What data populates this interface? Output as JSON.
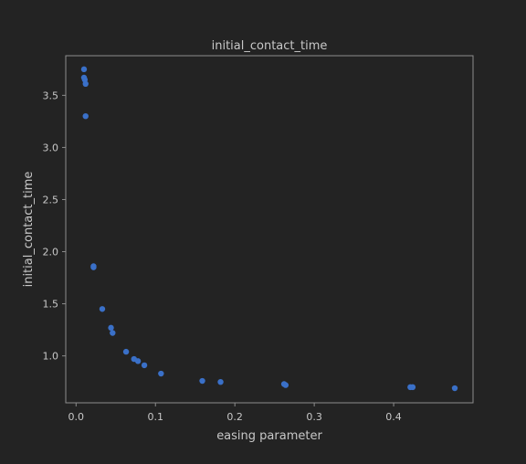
{
  "chart_data": {
    "type": "scatter",
    "title": "initial_contact_time",
    "xlabel": "easing parameter",
    "ylabel": "initial_contact_time",
    "xlim": [
      -0.013,
      0.5
    ],
    "ylim": [
      0.55,
      3.88
    ],
    "xticks": [
      0.0,
      0.1,
      0.2,
      0.3,
      0.4
    ],
    "xtick_labels": [
      "0.0",
      "0.1",
      "0.2",
      "0.3",
      "0.4"
    ],
    "yticks": [
      1.0,
      1.5,
      2.0,
      2.5,
      3.0,
      3.5
    ],
    "ytick_labels": [
      "1.0",
      "1.5",
      "2.0",
      "2.5",
      "3.0",
      "3.5"
    ],
    "grid": false,
    "legend": false,
    "marker_color": "#3a70c8",
    "x": [
      0.01,
      0.01,
      0.011,
      0.012,
      0.012,
      0.022,
      0.022,
      0.033,
      0.044,
      0.046,
      0.063,
      0.073,
      0.078,
      0.086,
      0.107,
      0.159,
      0.182,
      0.262,
      0.264,
      0.421,
      0.424,
      0.477
    ],
    "y": [
      3.75,
      3.67,
      3.65,
      3.61,
      3.3,
      1.86,
      1.85,
      1.45,
      1.27,
      1.22,
      1.04,
      0.97,
      0.95,
      0.91,
      0.83,
      0.76,
      0.75,
      0.73,
      0.72,
      0.7,
      0.7,
      0.69
    ]
  }
}
